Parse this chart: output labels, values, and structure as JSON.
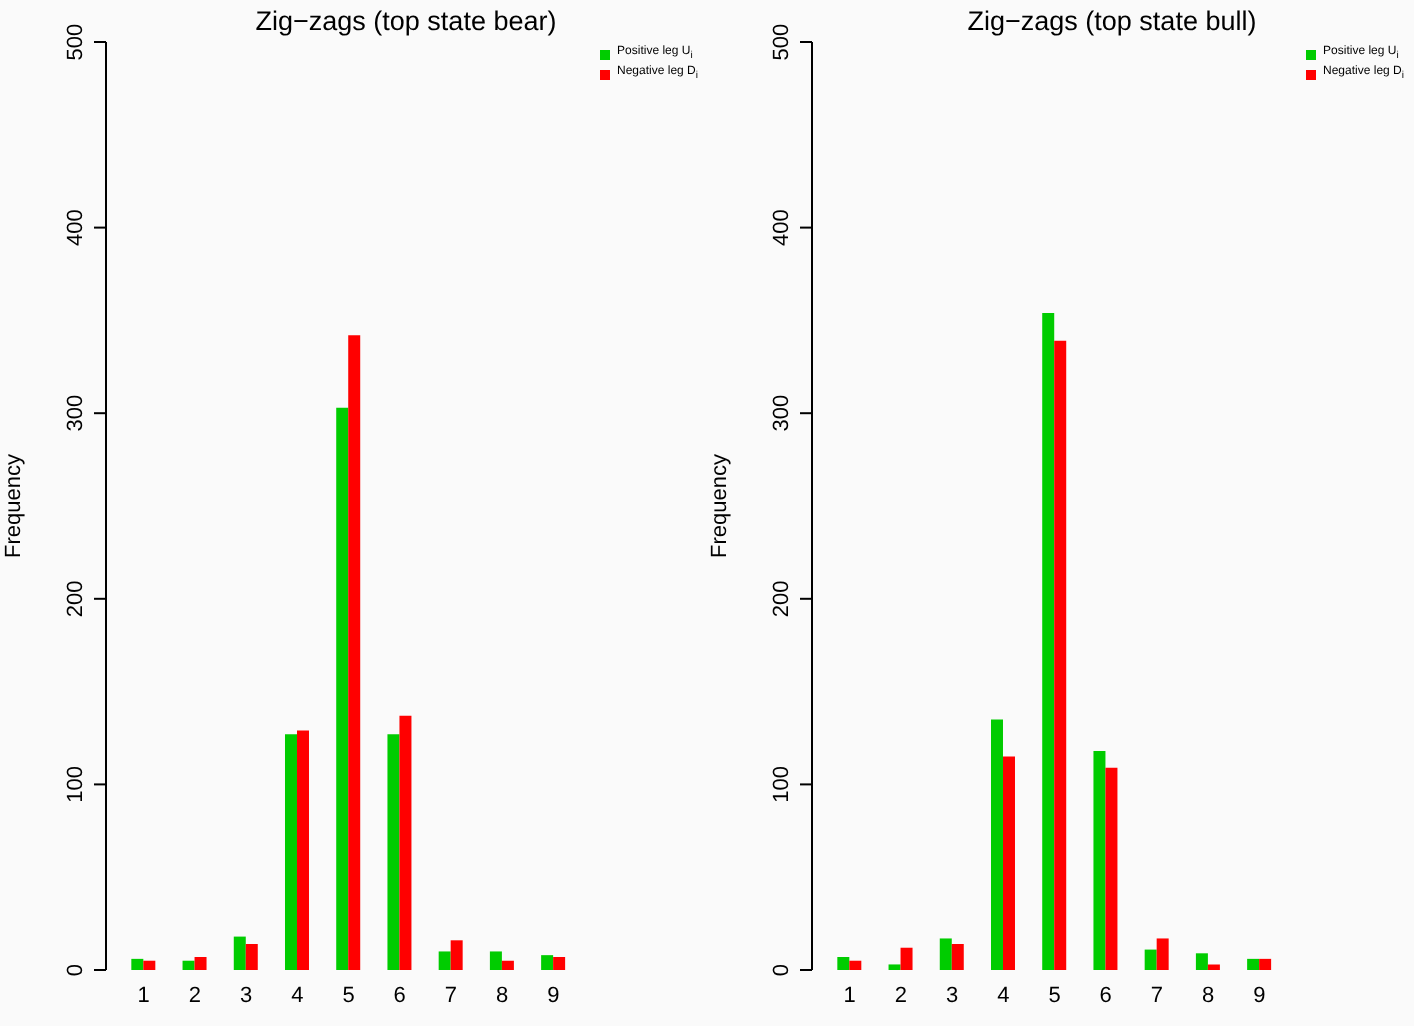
{
  "chart_data": [
    {
      "type": "bar",
      "title": "Zig−zags (top state bear)",
      "ylabel": "Frequency",
      "categories": [
        "1",
        "2",
        "3",
        "4",
        "5",
        "6",
        "7",
        "8",
        "9"
      ],
      "series": [
        {
          "name": "Positive leg U$_{i}$",
          "color": "#00cc00",
          "values": [
            6,
            5,
            18,
            127,
            303,
            127,
            10,
            10,
            8
          ]
        },
        {
          "name": "Negative leg D$_{i}$",
          "color": "#ff0000",
          "values": [
            5,
            7,
            14,
            129,
            342,
            137,
            16,
            5,
            7
          ]
        }
      ],
      "ylim": [
        0,
        500
      ],
      "yticks": [
        0,
        100,
        200,
        300,
        400,
        500
      ],
      "grid": false,
      "legend": "top right"
    },
    {
      "type": "bar",
      "title": "Zig−zags (top state bull)",
      "ylabel": "Frequency",
      "categories": [
        "1",
        "2",
        "3",
        "4",
        "5",
        "6",
        "7",
        "8",
        "9"
      ],
      "series": [
        {
          "name": "Positive leg U$_{i}$",
          "color": "#00cc00",
          "values": [
            7,
            3,
            17,
            135,
            354,
            118,
            11,
            9,
            6
          ]
        },
        {
          "name": "Negative leg D$_{i}$",
          "color": "#ff0000",
          "values": [
            5,
            12,
            14,
            115,
            339,
            109,
            17,
            3,
            6
          ]
        }
      ],
      "ylim": [
        0,
        500
      ],
      "yticks": [
        0,
        100,
        200,
        300,
        400,
        500
      ],
      "grid": false,
      "legend": "top right"
    }
  ]
}
